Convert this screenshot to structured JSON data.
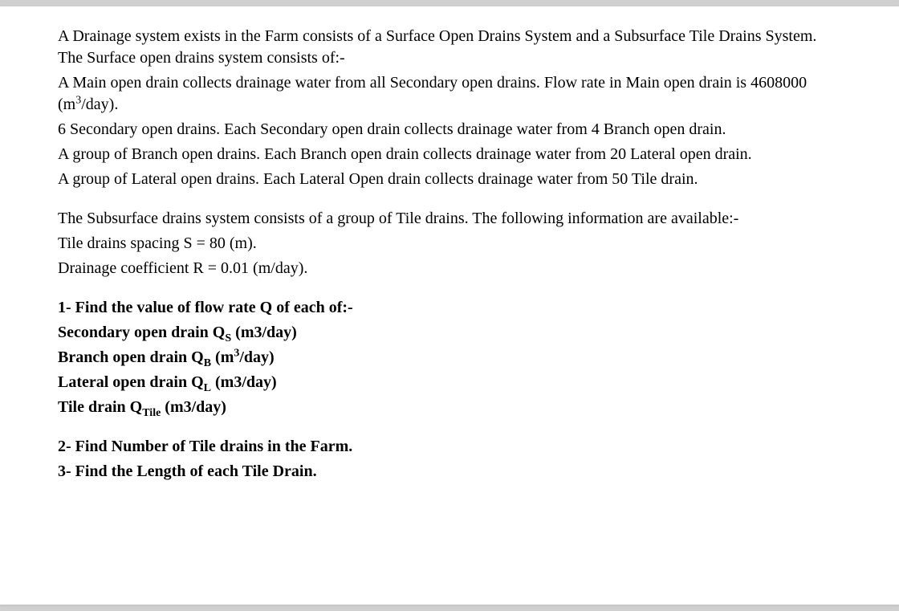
{
  "intro": {
    "p1": "A Drainage system exists in the Farm consists of a Surface Open Drains System and a Subsurface Tile Drains System. The Surface open drains system consists of:-",
    "p2a": "A Main open drain collects drainage water from all Secondary open drains. Flow rate in Main open drain is 4608000 (m",
    "p2b": "3",
    "p2c": "/day).",
    "p3": "6 Secondary open drains. Each Secondary open drain collects drainage water from 4 Branch open drain.",
    "p4": "A group of Branch open drains. Each Branch open drain collects drainage water from 20 Lateral open drain.",
    "p5": "A group of Lateral open drains. Each Lateral Open drain collects drainage water from 50 Tile drain."
  },
  "subsurface": {
    "p1": "The Subsurface drains system consists of a group of Tile drains. The following information are available:-",
    "p2": "Tile drains spacing S = 80 (m).",
    "p3": "Drainage coefficient R = 0.01 (m/day)."
  },
  "q1": {
    "heading": "1- Find the value of flow rate Q of each of:-",
    "line1a": "Secondary open drain Q",
    "line1sub": "S",
    "line1b": " (m3/day)",
    "line2a": "Branch open drain Q",
    "line2sub": "B",
    "line2b": " (m",
    "line2sup": "3",
    "line2c": "/day)",
    "line3a": "Lateral open drain Q",
    "line3sub": "L",
    "line3b": " (m3/day)",
    "line4a": "Tile drain Q",
    "line4sub": "Tile",
    "line4b": " (m3/day)"
  },
  "q2": "2- Find Number of Tile drains in the Farm.",
  "q3": "3- Find the Length of each Tile Drain."
}
